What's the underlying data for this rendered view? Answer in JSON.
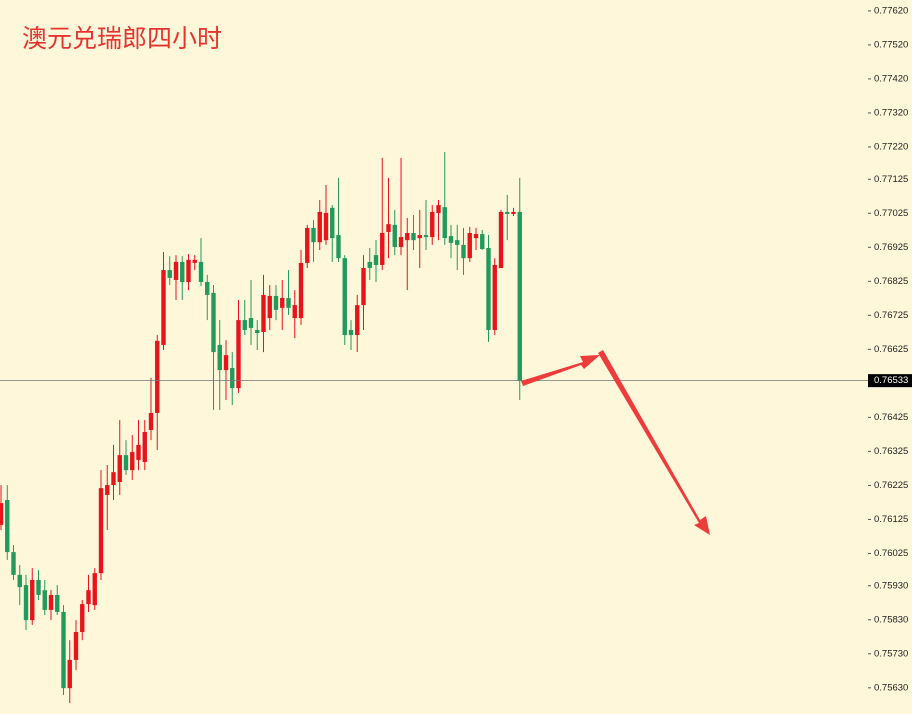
{
  "chart_data": {
    "type": "candlestick",
    "title": "澳元兑瑞郎四小时",
    "up_color": "#e8141b",
    "down_color": "#229a5c",
    "ylim": [
      0.75553,
      0.77652
    ],
    "yticks": [
      {
        "value": 0.7762,
        "label": "0.77620"
      },
      {
        "value": 0.7752,
        "label": "0.77520"
      },
      {
        "value": 0.7742,
        "label": "0.77420"
      },
      {
        "value": 0.7732,
        "label": "0.77320"
      },
      {
        "value": 0.7722,
        "label": "0.77220"
      },
      0.77125,
      0.77025,
      0.76925,
      0.76825,
      0.76725,
      0.76625,
      0.76425,
      0.76325,
      0.76225,
      0.76125,
      0.76025,
      {
        "value": 0.7593,
        "label": "0.75930"
      },
      {
        "value": 0.7583,
        "label": "0.75830"
      },
      {
        "value": 0.7573,
        "label": "0.75730"
      },
      {
        "value": 0.7563,
        "label": "0.75630"
      }
    ],
    "current_price": 0.76533,
    "open": [
      0.76109,
      0.76182,
      0.76029,
      0.75962,
      0.75932,
      0.75829,
      0.75947,
      0.75917,
      0.75859,
      0.75903,
      0.75853,
      0.75629,
      0.75712,
      0.75794,
      0.75876,
      0.75873,
      0.75967,
      0.76197,
      0.76226,
      0.76235,
      0.76314,
      0.7627,
      0.763,
      0.76294,
      0.76388,
      0.76438,
      0.76638,
      0.76858,
      0.76829,
      0.76882,
      0.76823,
      0.76879,
      0.76882,
      0.76823,
      0.76791,
      0.76638,
      0.76564,
      0.7657,
      0.76511,
      0.76711,
      0.76717,
      0.76682,
      0.76676,
      0.76717,
      0.76782,
      0.76747,
      0.76776,
      0.76717,
      0.76717,
      0.76879,
      0.76982,
      0.7694,
      0.76946,
      0.77041,
      0.76961,
      0.76893,
      0.76682,
      0.76667,
      0.76755,
      0.76882,
      0.76902,
      0.76873,
      0.7697,
      0.76991,
      0.76926,
      0.76946,
      0.76967,
      0.76952,
      0.76961,
      0.76955,
      0.77026,
      0.77043,
      0.76958,
      0.76946,
      0.76932,
      0.76893,
      0.76952,
      0.76964,
      0.76923,
      0.76682,
      0.76864,
      0.77029,
      0.77023,
      0.77029
    ],
    "high": [
      0.76226,
      0.76226,
      0.7605,
      0.75991,
      0.75962,
      0.75982,
      0.75976,
      0.75947,
      0.75917,
      0.75932,
      0.75873,
      0.7577,
      0.75829,
      0.75888,
      0.75962,
      0.75982,
      0.7627,
      0.76285,
      0.76344,
      0.76417,
      0.76358,
      0.76373,
      0.76417,
      0.76417,
      0.76541,
      0.76667,
      0.76911,
      0.76899,
      0.76902,
      0.76899,
      0.76905,
      0.76902,
      0.76952,
      0.76844,
      0.76814,
      0.76711,
      0.76652,
      0.76617,
      0.7677,
      0.7677,
      0.76829,
      0.76711,
      0.76844,
      0.76814,
      0.76814,
      0.76829,
      0.76858,
      0.76799,
      0.76917,
      0.76991,
      0.77005,
      0.77064,
      0.77108,
      0.77049,
      0.77129,
      0.76902,
      0.76711,
      0.76785,
      0.76902,
      0.76923,
      0.76946,
      0.77188,
      0.77129,
      0.77035,
      0.77188,
      0.77011,
      0.7702,
      0.77035,
      0.77064,
      0.77049,
      0.77064,
      0.77205,
      0.76991,
      0.76991,
      0.76982,
      0.76985,
      0.76982,
      0.76976,
      0.76961,
      0.76893,
      0.77035,
      0.77079,
      0.77041,
      0.77129
    ],
    "low": [
      0.76094,
      0.76006,
      0.75947,
      0.75873,
      0.758,
      0.75815,
      0.75888,
      0.75844,
      0.75829,
      0.75844,
      0.75609,
      0.75585,
      0.75682,
      0.7577,
      0.75853,
      0.75859,
      0.75947,
      0.76094,
      0.76182,
      0.76197,
      0.76256,
      0.76241,
      0.7627,
      0.7627,
      0.76358,
      0.76329,
      0.76623,
      0.76814,
      0.7677,
      0.7677,
      0.76799,
      0.76858,
      0.76811,
      0.76711,
      0.76447,
      0.76447,
      0.76476,
      0.76461,
      0.76497,
      0.76667,
      0.76638,
      0.76623,
      0.76617,
      0.76682,
      0.76711,
      0.76682,
      0.76726,
      0.76658,
      0.76697,
      0.76864,
      0.76882,
      0.76917,
      0.76932,
      0.76882,
      0.76882,
      0.76638,
      0.76623,
      0.76617,
      0.76682,
      0.76829,
      0.76823,
      0.76858,
      0.76893,
      0.76902,
      0.76902,
      0.76799,
      0.76917,
      0.76864,
      0.76917,
      0.76932,
      0.76946,
      0.76932,
      0.76893,
      0.76858,
      0.76844,
      0.76882,
      0.76917,
      0.76917,
      0.76647,
      0.76667,
      0.76864,
      0.76946,
      0.77017,
      0.76476
    ],
    "close": [
      0.76173,
      0.76029,
      0.75962,
      0.75926,
      0.75829,
      0.75947,
      0.75903,
      0.75859,
      0.75903,
      0.75853,
      0.75629,
      0.75712,
      0.75794,
      0.75876,
      0.75917,
      0.75967,
      0.76217,
      0.76226,
      0.76264,
      0.76314,
      0.7627,
      0.76323,
      0.76344,
      0.76382,
      0.76438,
      0.7665,
      0.76858,
      0.76835,
      0.76882,
      0.76823,
      0.76888,
      0.76888,
      0.76823,
      0.76785,
      0.76617,
      0.76564,
      0.76608,
      0.76511,
      0.76711,
      0.76682,
      0.76688,
      0.76673,
      0.76785,
      0.76782,
      0.76741,
      0.76776,
      0.76747,
      0.76755,
      0.76879,
      0.76982,
      0.7694,
      0.77029,
      0.77026,
      0.76952,
      0.76893,
      0.76667,
      0.76667,
      0.76755,
      0.76864,
      0.76864,
      0.76873,
      0.76967,
      0.76993,
      0.76926,
      0.76955,
      0.76967,
      0.76946,
      0.76961,
      0.76955,
      0.77029,
      0.77049,
      0.76952,
      0.76938,
      0.76932,
      0.76893,
      0.76967,
      0.76964,
      0.7692,
      0.76682,
      0.76873,
      0.77029,
      0.77023,
      0.77029,
      0.76533
    ]
  }
}
